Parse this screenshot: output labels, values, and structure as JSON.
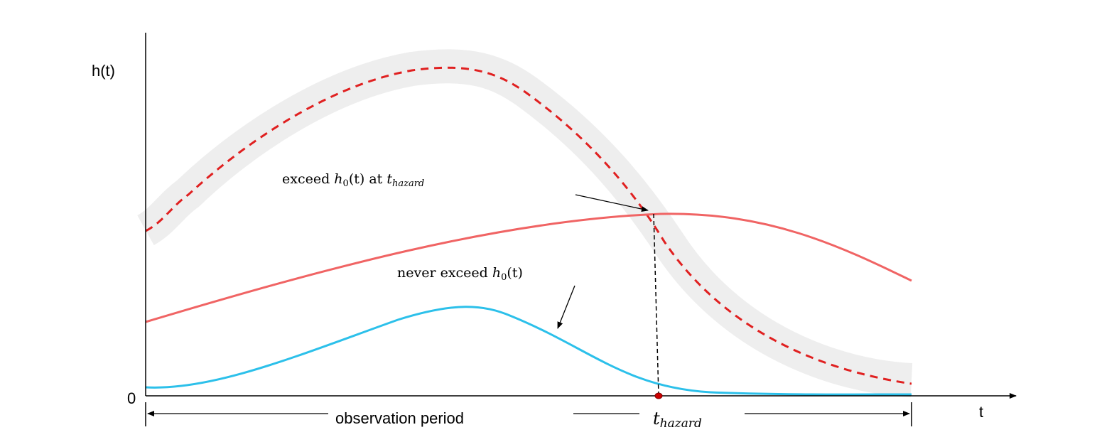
{
  "labels": {
    "y_axis": "h(t)",
    "x_axis": "t",
    "zero": "0",
    "observation_period": "observation period",
    "t_hazard_main": "t",
    "t_hazard_sub": "hazard"
  },
  "annotations": {
    "exceed": {
      "prefix": "exceed ",
      "h": "h",
      "h_sub": "0",
      "args": "(t)",
      "mid": " at ",
      "t": "t",
      "t_sub": "hazard"
    },
    "never": {
      "prefix": "never exceed ",
      "h": "h",
      "h_sub": "0",
      "args": "(t)"
    }
  },
  "colors": {
    "threshold_band": "#ededed",
    "threshold_line": "#e02020",
    "hazard_exceeding": "#f06060",
    "hazard_never": "#2cc0ea",
    "axis": "#000000"
  }
}
